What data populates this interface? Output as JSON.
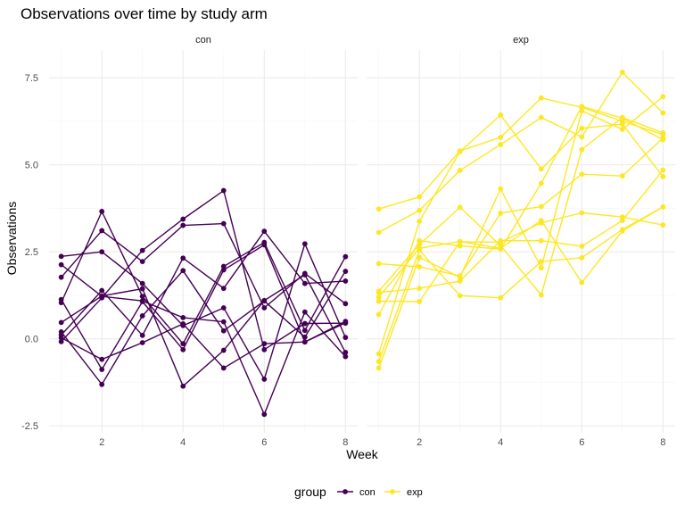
{
  "chart_data": {
    "type": "line",
    "title": "Observations over time by study arm",
    "xlabel": "Week",
    "ylabel": "Observations",
    "xlim": [
      0.7,
      8.3
    ],
    "ylim": [
      -2.7,
      8.3
    ],
    "x_ticks": [
      2,
      4,
      6,
      8
    ],
    "y_ticks": [
      -2.5,
      0.0,
      2.5,
      5.0,
      7.5
    ],
    "y_tick_labels": [
      "-2.5",
      "0.0",
      "2.5",
      "5.0",
      "7.5"
    ],
    "grid": true,
    "legend": {
      "title": "group",
      "position": "bottom",
      "entries": [
        "con",
        "exp"
      ]
    },
    "colors": {
      "con": "#440154",
      "exp": "#FDE725"
    },
    "x": [
      1,
      2,
      3,
      4,
      5,
      6,
      7,
      8
    ],
    "panels": [
      {
        "name": "con",
        "series": [
          {
            "values": [
              0.2,
              -1.31,
              0.66,
              1.96,
              0.23,
              1.09,
              0.05,
              1.94
            ]
          },
          {
            "values": [
              1.13,
              -0.88,
              1.07,
              -0.31,
              1.98,
              2.7,
              -0.09,
              0.46
            ]
          },
          {
            "values": [
              1.77,
              3.11,
              2.22,
              3.26,
              3.31,
              0.89,
              1.88,
              1.01
            ]
          },
          {
            "values": [
              1.04,
              3.66,
              1.22,
              -0.14,
              2.08,
              2.77,
              0.24,
              2.36
            ]
          },
          {
            "values": [
              0.47,
              1.23,
              1.44,
              -1.36,
              -0.33,
              1.1,
              1.84,
              -0.39
            ]
          },
          {
            "values": [
              2.37,
              2.5,
              1.59,
              0.38,
              0.89,
              -1.16,
              2.73,
              0.04
            ]
          },
          {
            "values": [
              0.03,
              -0.59,
              -0.11,
              0.43,
              -0.84,
              -0.14,
              -0.09,
              0.5
            ]
          },
          {
            "values": [
              -0.08,
              1.18,
              2.54,
              3.44,
              4.26,
              -0.31,
              0.44,
              0.45
            ]
          },
          {
            "values": [
              2.13,
              1.22,
              1.09,
              0.61,
              0.49,
              -2.17,
              0.77,
              -0.51
            ]
          },
          {
            "values": [
              0.11,
              1.39,
              0.1,
              2.32,
              1.45,
              3.09,
              1.59,
              1.66
            ]
          }
        ]
      },
      {
        "name": "exp",
        "series": [
          {
            "values": [
              3.73,
              4.08,
              5.4,
              5.79,
              6.92,
              6.65,
              6.25,
              5.87
            ]
          },
          {
            "values": [
              -0.84,
              2.34,
              1.77,
              4.31,
              2.04,
              6.55,
              6.02,
              6.96
            ]
          },
          {
            "values": [
              2.16,
              2.07,
              1.81,
              3.61,
              3.8,
              4.73,
              4.68,
              5.77
            ]
          },
          {
            "values": [
              1.37,
              2.71,
              3.78,
              2.68,
              1.26,
              5.44,
              6.36,
              5.92
            ]
          },
          {
            "values": [
              1.33,
              1.45,
              1.66,
              2.82,
              2.82,
              2.66,
              3.4,
              4.85
            ]
          },
          {
            "values": [
              -0.43,
              3.38,
              5.38,
              6.43,
              4.88,
              6.05,
              6.17,
              4.66
            ]
          },
          {
            "values": [
              3.06,
              3.69,
              4.84,
              5.58,
              6.36,
              5.8,
              7.66,
              6.49
            ]
          },
          {
            "values": [
              0.7,
              2.82,
              2.67,
              2.58,
              4.47,
              6.68,
              6.34,
              5.72
            ]
          },
          {
            "values": [
              -0.65,
              2.55,
              1.24,
              1.18,
              2.22,
              2.33,
              3.14,
              3.79
            ]
          },
          {
            "values": [
              1.08,
              1.07,
              2.79,
              2.78,
              3.33,
              3.62,
              3.5,
              3.27
            ]
          },
          {
            "values": [
              1.2,
              2.6,
              2.8,
              2.6,
              3.4,
              1.62,
              3.1,
              3.79
            ]
          }
        ]
      }
    ]
  }
}
